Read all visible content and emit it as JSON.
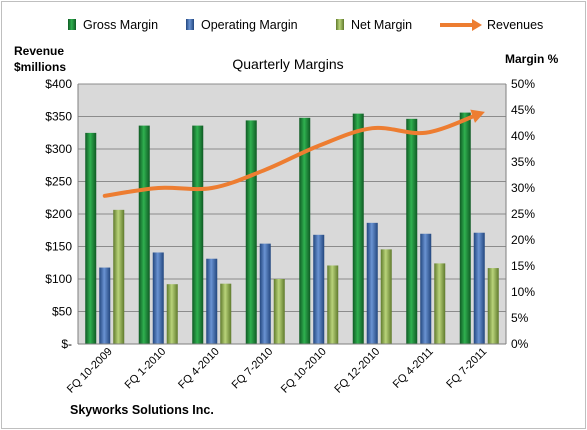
{
  "chart_data": {
    "type": "bar",
    "title": "Quarterly Margins",
    "footer": "Skyworks Solutions Inc.",
    "categories": [
      "FQ 10-2009",
      "FQ 1-2010",
      "FQ 4-2010",
      "FQ 7-2010",
      "FQ 10-2010",
      "FQ 12-2010",
      "FQ 4-2011",
      "FQ 7-2011"
    ],
    "y_left": {
      "label_line1": "Revenue",
      "label_line2": "$millions",
      "range": [
        0,
        400
      ],
      "ticks": [
        {
          "v": 0,
          "t": "$-"
        },
        {
          "v": 50,
          "t": "$50"
        },
        {
          "v": 100,
          "t": "$100"
        },
        {
          "v": 150,
          "t": "$150"
        },
        {
          "v": 200,
          "t": "$200"
        },
        {
          "v": 250,
          "t": "$250"
        },
        {
          "v": 300,
          "t": "$300"
        },
        {
          "v": 350,
          "t": "$350"
        },
        {
          "v": 400,
          "t": "$400"
        }
      ]
    },
    "y_right": {
      "label": "Margin %",
      "range": [
        0,
        50
      ],
      "ticks": [
        {
          "v": 0,
          "t": "0%"
        },
        {
          "v": 5,
          "t": "5%"
        },
        {
          "v": 10,
          "t": "10%"
        },
        {
          "v": 15,
          "t": "15%"
        },
        {
          "v": 20,
          "t": "20%"
        },
        {
          "v": 25,
          "t": "25%"
        },
        {
          "v": 30,
          "t": "30%"
        },
        {
          "v": 35,
          "t": "35%"
        },
        {
          "v": 40,
          "t": "40%"
        },
        {
          "v": 45,
          "t": "45%"
        },
        {
          "v": 50,
          "t": "50%"
        }
      ]
    },
    "series": [
      {
        "name": "Gross Margin",
        "kind": "bar",
        "axis": "right",
        "color": "#1e8c3a",
        "values": [
          40.6,
          42.0,
          42.0,
          43.0,
          43.5,
          44.3,
          43.3,
          44.5
        ]
      },
      {
        "name": "Operating Margin",
        "kind": "bar",
        "axis": "right",
        "color": "#3f6fb5",
        "values": [
          14.7,
          17.6,
          16.4,
          19.3,
          21.0,
          23.3,
          21.2,
          21.4
        ]
      },
      {
        "name": "Net Margin",
        "kind": "bar",
        "axis": "right",
        "color": "#9bbb59",
        "values": [
          25.8,
          11.5,
          11.6,
          12.5,
          15.1,
          18.2,
          15.5,
          14.6
        ]
      },
      {
        "name": "Revenues",
        "kind": "line",
        "axis": "left",
        "color": "#ed7d31",
        "values": [
          228,
          240,
          240,
          268,
          305,
          332,
          325,
          354
        ]
      }
    ],
    "grid": true,
    "legend_position": "top"
  }
}
